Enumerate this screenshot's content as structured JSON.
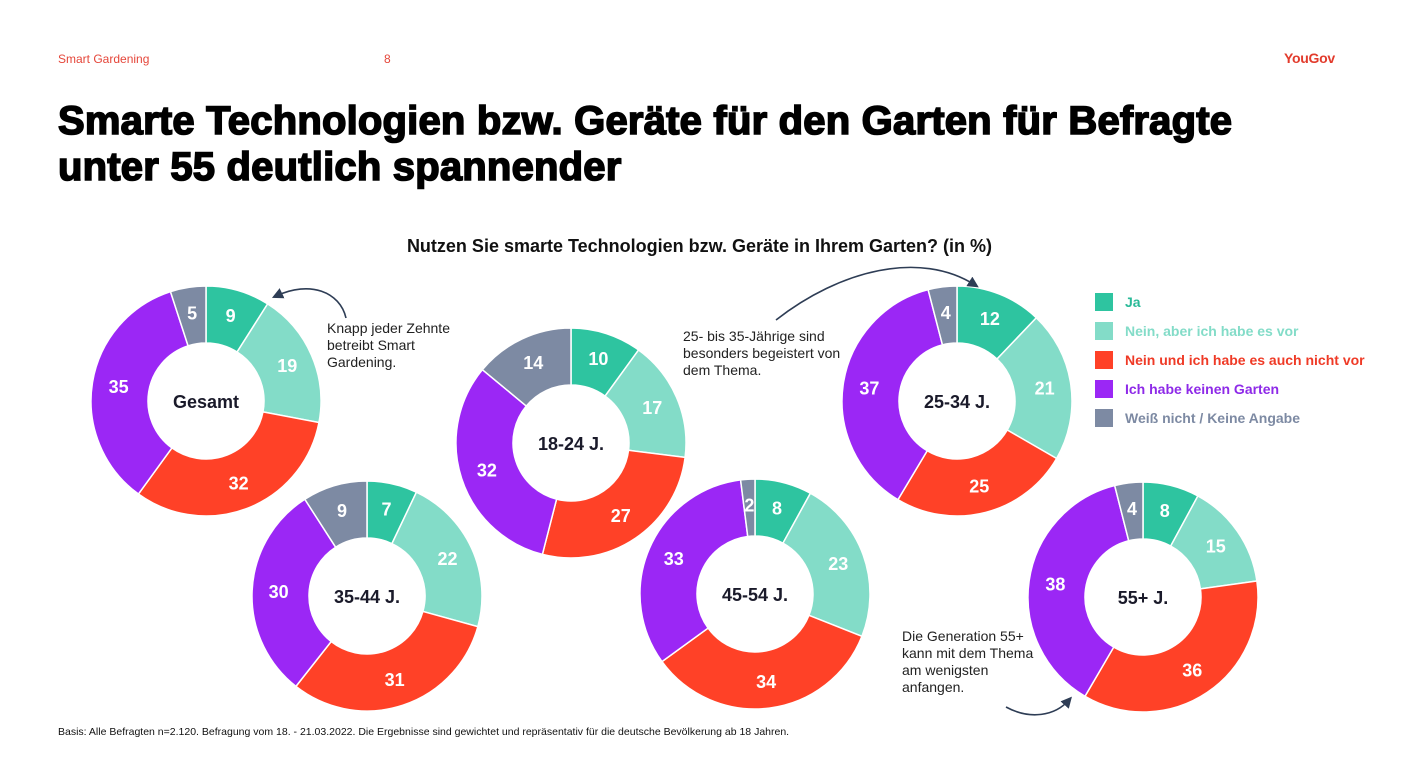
{
  "header": {
    "section": "Smart Gardening",
    "page_number": "8",
    "logo": "YouGov"
  },
  "title": "Smarte Technologien bzw. Geräte für den Garten für Befragte unter 55 deutlich spannender",
  "footer": "Basis: Alle Befragten n=2.120. Befragung vom 18. - 21.03.2022. Die Ergebnisse sind gewichtet und repräsentativ für die deutsche Bevölkerung ab 18 Jahren.",
  "annotations": {
    "note1": "Knapp jeder Zehnte betreibt Smart Gardening.",
    "note2": "25- bis 35-Jährige sind besonders begeistert von dem Thema.",
    "note3": "Die Generation 55+ kann mit dem Thema am wenigsten anfangen."
  },
  "chart_data": {
    "type": "pie",
    "subtype": "donut",
    "title": "Nutzen Sie smarte Technologien bzw. Geräte in Ihrem Garten? (in %)",
    "unit": "%",
    "legend_position": "right",
    "categories": [
      "Ja",
      "Nein, aber ich habe es vor",
      "Nein und ich habe es auch nicht vor",
      "Ich habe keinen Garten",
      "Weiß nicht / Keine Angabe"
    ],
    "colors": [
      "#2ec4a0",
      "#83dcc8",
      "#ff4127",
      "#9b27f5",
      "#7d8aa3"
    ],
    "legend_text_colors": [
      "#2aba98",
      "#83dcc8",
      "#ef3a26",
      "#8e2ae8",
      "#7d8aa3"
    ],
    "series": [
      {
        "name": "Gesamt",
        "values": [
          9,
          19,
          32,
          35,
          5
        ]
      },
      {
        "name": "18-24 J.",
        "values": [
          10,
          17,
          27,
          32,
          14
        ]
      },
      {
        "name": "25-34 J.",
        "values": [
          12,
          21,
          25,
          37,
          4
        ]
      },
      {
        "name": "35-44 J.",
        "values": [
          7,
          22,
          31,
          30,
          9
        ]
      },
      {
        "name": "45-54 J.",
        "values": [
          8,
          23,
          34,
          33,
          2
        ]
      },
      {
        "name": "55+ J.",
        "values": [
          8,
          15,
          36,
          38,
          4
        ]
      }
    ]
  }
}
